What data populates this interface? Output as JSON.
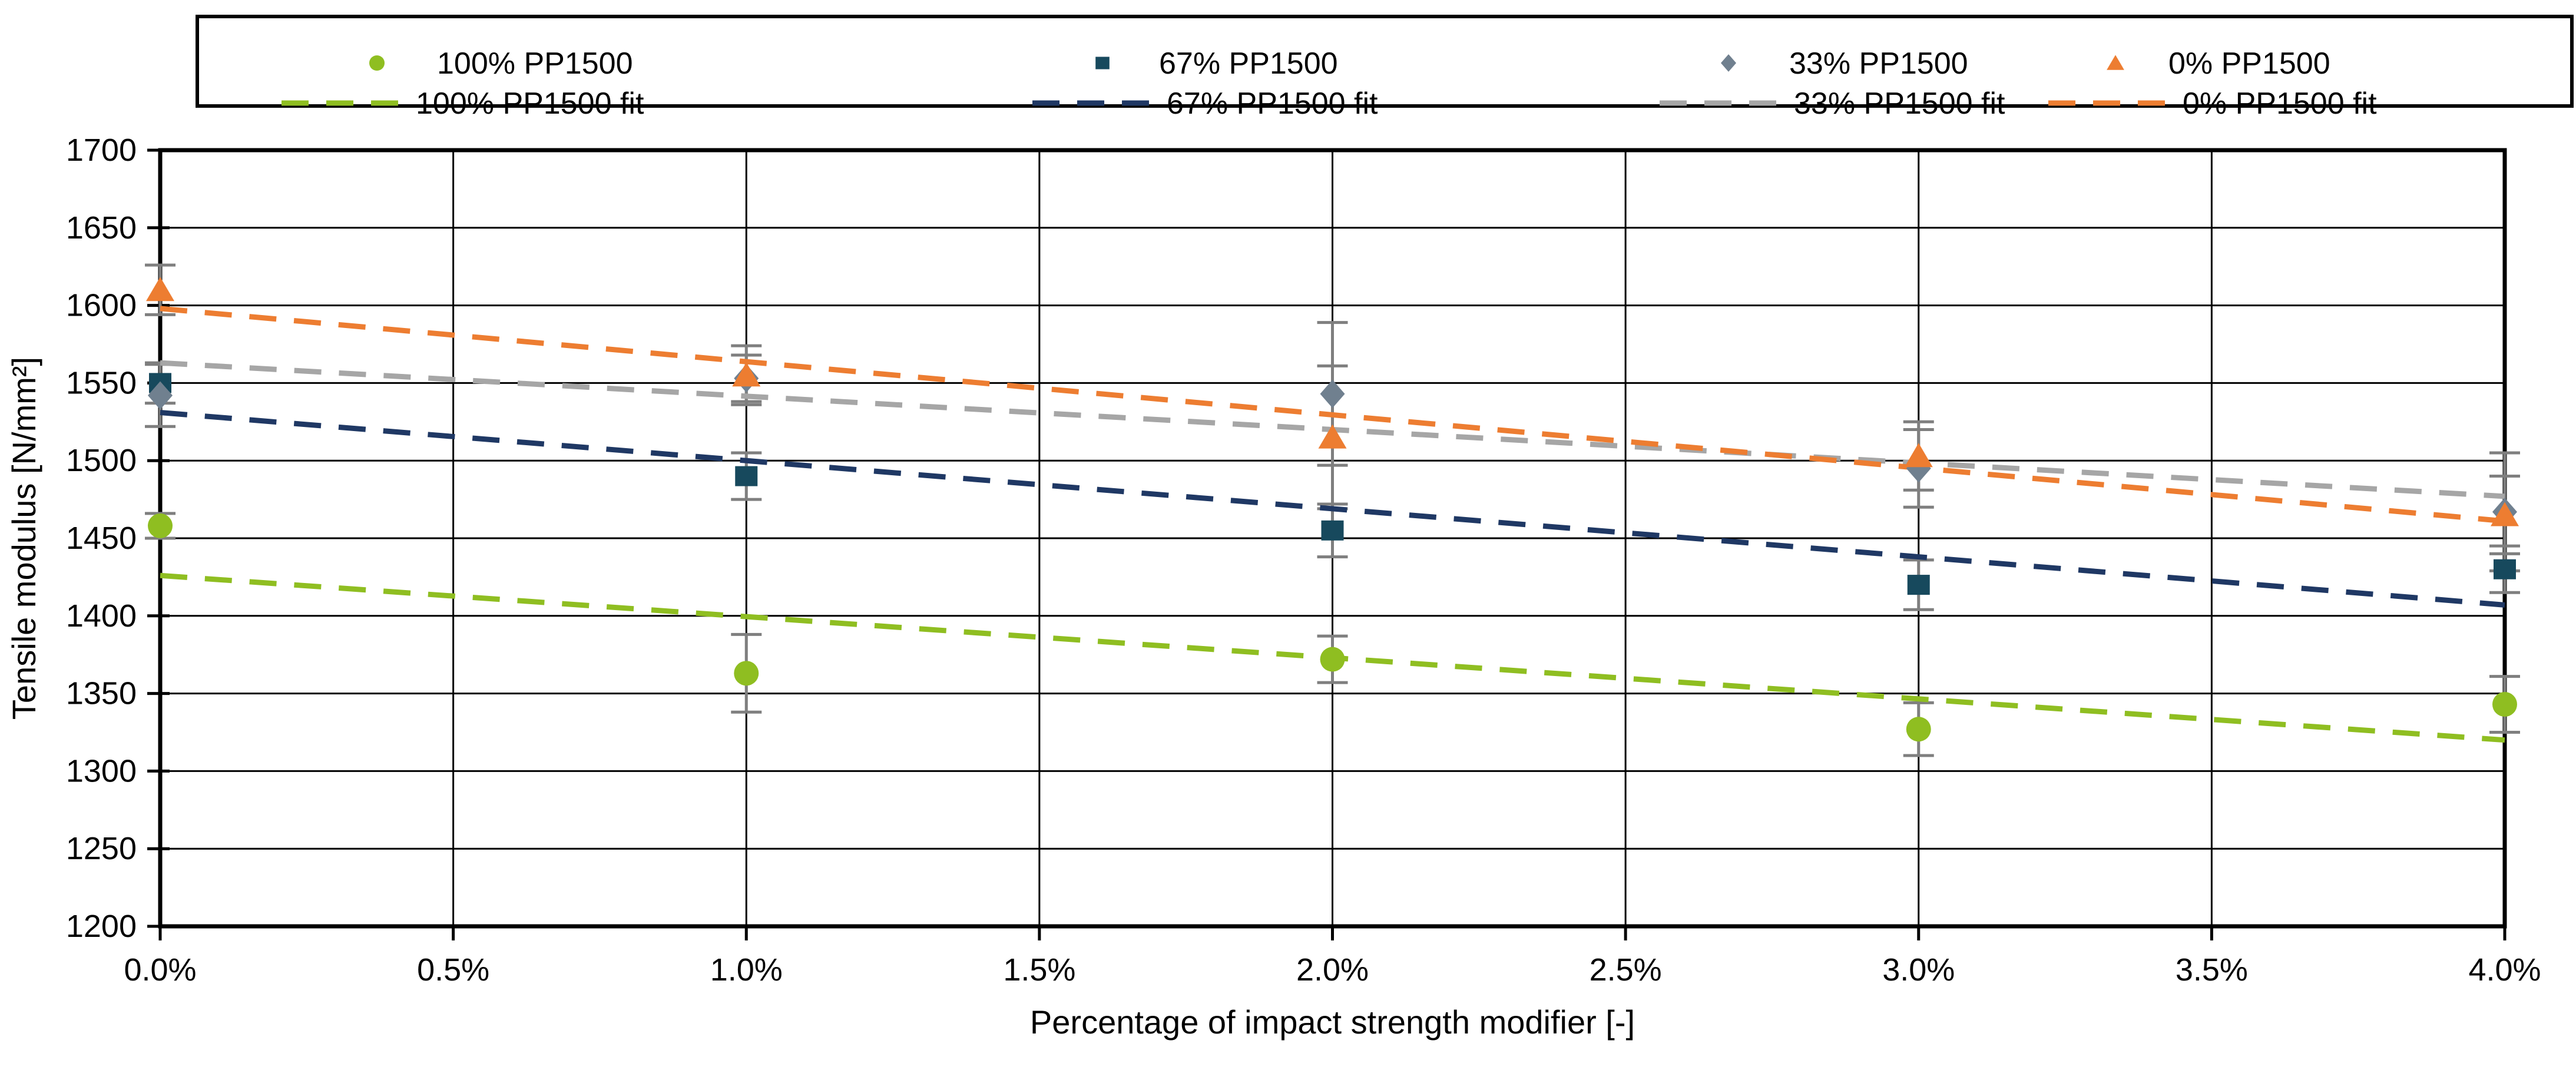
{
  "chart_data": {
    "type": "scatter",
    "title": "",
    "xlabel": "Percentage of impact strength modifier  [-]",
    "ylabel": "Tensile modulus  [N/mm²]",
    "xlim": [
      0,
      4
    ],
    "ylim": [
      1200,
      1700
    ],
    "y_tick_step": 50,
    "grid": true,
    "legend_position": "top",
    "x_tick_labels": [
      "0.0%",
      "0.5%",
      "1.0%",
      "1.5%",
      "2.0%",
      "2.5%",
      "3.0%",
      "3.5%",
      "4.0%"
    ],
    "y_tick_labels": [
      "1700",
      "1650",
      "1600",
      "1550",
      "1500",
      "1450",
      "1400",
      "1350",
      "1300",
      "1250",
      "1200"
    ],
    "x": [
      0,
      1,
      2,
      3,
      4
    ],
    "series": [
      {
        "name": "100% PP1500",
        "marker": "circle",
        "color": "#8FBE21",
        "values": [
          1458,
          1363,
          1372,
          1327,
          1343
        ],
        "errors": [
          8,
          25,
          15,
          17,
          18
        ]
      },
      {
        "name": "67% PP1500",
        "marker": "square",
        "color": "#17495D",
        "values": [
          1550,
          1490,
          1455,
          1420,
          1430
        ],
        "errors": [
          13,
          15,
          17,
          16,
          15
        ]
      },
      {
        "name": "33% PP1500",
        "marker": "diamond",
        "color": "#70808F",
        "values": [
          1542,
          1553,
          1543,
          1495,
          1467
        ],
        "errors": [
          20,
          15,
          46,
          25,
          38
        ]
      },
      {
        "name": "0% PP1500",
        "marker": "triangle",
        "color": "#ED7D31",
        "values": [
          1610,
          1555,
          1515,
          1503,
          1465
        ],
        "errors": [
          16,
          19,
          46,
          22,
          25
        ]
      }
    ],
    "fits": [
      {
        "name": "100% PP1500 fit",
        "color": "#8FBE21",
        "y_start": 1426,
        "y_end": 1320
      },
      {
        "name": "67% PP1500 fit",
        "color": "#1F3864",
        "y_start": 1531,
        "y_end": 1407
      },
      {
        "name": "33% PP1500 fit",
        "color": "#A6A6A6",
        "y_start": 1563,
        "y_end": 1477
      },
      {
        "name": "0% PP1500 fit",
        "color": "#ED7D31",
        "y_start": 1598,
        "y_end": 1461
      }
    ],
    "error_bar_color": "#7F7F7F",
    "axis_color": "#000000",
    "gridline_color": "#000000",
    "background_color": "#FFFFFF"
  }
}
